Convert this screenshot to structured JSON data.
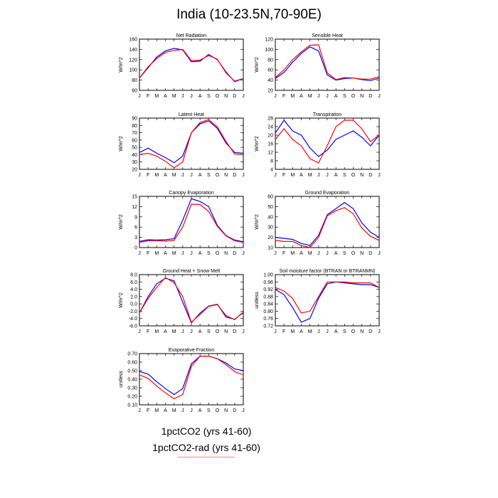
{
  "title": "India (10-23.5N,70-90E)",
  "colors": {
    "series_1": "#0000ff",
    "series_2": "#ff0000",
    "axis": "#000000"
  },
  "legend": {
    "line1": "1pctCO2 (yrs 41-60)",
    "line2": "1pctCO2-rad (yrs 41-60)"
  },
  "chart_data": [
    {
      "type": "line",
      "title": "Net Radiation",
      "ylabel": "W/m^2",
      "categories": [
        "J",
        "F",
        "M",
        "A",
        "M",
        "J",
        "J",
        "A",
        "S",
        "O",
        "N",
        "D",
        "J"
      ],
      "ylim": [
        60,
        160
      ],
      "yticks": [
        60,
        80,
        100,
        120,
        140,
        160
      ],
      "ytick_labels": [
        "60",
        "80",
        "100",
        "120",
        "140",
        "160"
      ],
      "series": [
        {
          "values": [
            84,
            104,
            125,
            137,
            142,
            139,
            116,
            117,
            130,
            120,
            96,
            77,
            83
          ]
        },
        {
          "values": [
            84,
            106,
            122,
            134,
            138,
            140,
            118,
            119,
            128,
            121,
            94,
            78,
            83
          ]
        }
      ]
    },
    {
      "type": "line",
      "title": "Sensible Heat",
      "ylabel": "W/m^2",
      "categories": [
        "J",
        "F",
        "M",
        "A",
        "M",
        "J",
        "J",
        "A",
        "S",
        "O",
        "N",
        "D",
        "J"
      ],
      "ylim": [
        20,
        120
      ],
      "yticks": [
        20,
        40,
        60,
        80,
        100,
        120
      ],
      "ytick_labels": [
        "20",
        "40",
        "60",
        "80",
        "100",
        "120"
      ],
      "series": [
        {
          "values": [
            43,
            55,
            75,
            92,
            105,
            97,
            50,
            40,
            43,
            44,
            41,
            39,
            44
          ]
        },
        {
          "values": [
            45,
            60,
            80,
            95,
            108,
            109,
            54,
            41,
            45,
            44,
            42,
            42,
            47
          ]
        }
      ]
    },
    {
      "type": "line",
      "title": "Latent Heat",
      "ylabel": "W/m^2",
      "categories": [
        "J",
        "F",
        "M",
        "A",
        "M",
        "J",
        "J",
        "A",
        "S",
        "O",
        "N",
        "D",
        "J"
      ],
      "ylim": [
        20,
        90
      ],
      "yticks": [
        20,
        30,
        40,
        50,
        60,
        70,
        80,
        90
      ],
      "ytick_labels": [
        "20",
        "30",
        "40",
        "50",
        "60",
        "70",
        "80",
        "90"
      ],
      "series": [
        {
          "values": [
            43,
            49,
            42,
            36,
            29,
            38,
            70,
            82,
            86,
            76,
            56,
            43,
            42
          ]
        },
        {
          "values": [
            40,
            42,
            38,
            31,
            22,
            30,
            70,
            84,
            88,
            78,
            58,
            41,
            40
          ]
        }
      ]
    },
    {
      "type": "line",
      "title": "Transpiration",
      "ylabel": "W/m^2",
      "categories": [
        "J",
        "F",
        "M",
        "A",
        "M",
        "J",
        "J",
        "A",
        "S",
        "O",
        "N",
        "D",
        "J"
      ],
      "ylim": [
        4,
        28
      ],
      "yticks": [
        4,
        8,
        12,
        16,
        20,
        24,
        28
      ],
      "ytick_labels": [
        "4",
        "8",
        "12",
        "16",
        "20",
        "24",
        "28"
      ],
      "series": [
        {
          "values": [
            21,
            27,
            22,
            20,
            14,
            10,
            13,
            18,
            20,
            22,
            19,
            15,
            20
          ]
        },
        {
          "values": [
            18,
            23,
            18,
            15,
            9,
            7,
            15,
            24,
            27,
            27,
            23,
            17,
            20
          ]
        }
      ]
    },
    {
      "type": "line",
      "title": "Canopy Evaporation",
      "ylabel": "W/m^2",
      "categories": [
        "J",
        "F",
        "M",
        "A",
        "M",
        "J",
        "J",
        "A",
        "S",
        "O",
        "N",
        "D",
        "J"
      ],
      "ylim": [
        0,
        15
      ],
      "yticks": [
        0,
        3,
        6,
        9,
        12,
        15
      ],
      "ytick_labels": [
        "0",
        "3",
        "6",
        "9",
        "12",
        "15"
      ],
      "series": [
        {
          "values": [
            1.8,
            2.3,
            2.2,
            2.3,
            2.6,
            8.0,
            14.3,
            13.5,
            12.0,
            6.5,
            3.5,
            2.2,
            1.7
          ]
        },
        {
          "values": [
            1.5,
            2.0,
            2.0,
            1.9,
            2.1,
            6.0,
            12.7,
            12.6,
            10.6,
            6.2,
            3.4,
            2.0,
            1.5
          ]
        }
      ]
    },
    {
      "type": "line",
      "title": "Ground Evaporation",
      "ylabel": "W/m^2",
      "categories": [
        "J",
        "F",
        "M",
        "A",
        "M",
        "J",
        "J",
        "A",
        "S",
        "O",
        "N",
        "D",
        "J"
      ],
      "ylim": [
        10,
        60
      ],
      "yticks": [
        10,
        20,
        30,
        40,
        50,
        60
      ],
      "ytick_labels": [
        "10",
        "20",
        "30",
        "40",
        "50",
        "60"
      ],
      "series": [
        {
          "values": [
            20,
            19,
            18,
            14,
            12,
            22,
            42,
            48,
            54,
            48,
            34,
            25,
            20
          ]
        },
        {
          "values": [
            17,
            16,
            16,
            12,
            10,
            20,
            41,
            46,
            49,
            43,
            29,
            21,
            17
          ]
        }
      ]
    },
    {
      "type": "line",
      "title": "Ground Heat + Snow Melt",
      "ylabel": "W/m^2",
      "categories": [
        "J",
        "F",
        "M",
        "A",
        "M",
        "J",
        "J",
        "A",
        "S",
        "O",
        "N",
        "D",
        "J"
      ],
      "ylim": [
        -6,
        8
      ],
      "yticks": [
        -6,
        -4,
        -2,
        0,
        2,
        4,
        6,
        8
      ],
      "ytick_labels": [
        "-6.0",
        "-4.0",
        "-2.0",
        "0.0",
        "2.0",
        "4.0",
        "6.0",
        "8.0"
      ],
      "series": [
        {
          "values": [
            -2.5,
            2.0,
            5.5,
            7.0,
            6.3,
            0.5,
            -5.2,
            -2.5,
            -0.6,
            -0.1,
            -3.6,
            -4.2,
            -2.4
          ]
        },
        {
          "values": [
            -2.5,
            1.5,
            4.5,
            7.2,
            5.8,
            2.0,
            -5.0,
            -2.9,
            -0.7,
            -0.2,
            -3.2,
            -4.3,
            -2.2
          ]
        }
      ]
    },
    {
      "type": "line",
      "title": "Soil moisture factor (BTRAN or BTRANMN)",
      "ylabel": "unitless",
      "categories": [
        "J",
        "F",
        "M",
        "A",
        "M",
        "J",
        "J",
        "A",
        "S",
        "O",
        "N",
        "D",
        "J"
      ],
      "ylim": [
        0.72,
        1.0
      ],
      "yticks": [
        0.72,
        0.76,
        0.8,
        0.84,
        0.88,
        0.92,
        0.96,
        1.0
      ],
      "ytick_labels": [
        "0.72",
        "0.76",
        "0.80",
        "0.84",
        "0.88",
        "0.92",
        "0.96",
        "1.00"
      ],
      "series": [
        {
          "values": [
            0.92,
            0.89,
            0.82,
            0.74,
            0.76,
            0.87,
            0.95,
            0.96,
            0.955,
            0.95,
            0.945,
            0.945,
            0.93
          ]
        },
        {
          "values": [
            0.93,
            0.91,
            0.87,
            0.79,
            0.8,
            0.88,
            0.96,
            0.96,
            0.96,
            0.955,
            0.955,
            0.955,
            0.93
          ]
        }
      ]
    },
    {
      "type": "line",
      "title": "Evaporative Fraction",
      "ylabel": "unitless",
      "categories": [
        "J",
        "F",
        "M",
        "A",
        "M",
        "J",
        "J",
        "A",
        "S",
        "O",
        "N",
        "D",
        "J"
      ],
      "ylim": [
        0.1,
        0.7
      ],
      "yticks": [
        0.1,
        0.2,
        0.3,
        0.4,
        0.5,
        0.6,
        0.7
      ],
      "ytick_labels": [
        "0.10",
        "0.20",
        "0.30",
        "0.40",
        "0.50",
        "0.60",
        "0.70"
      ],
      "series": [
        {
          "values": [
            0.49,
            0.46,
            0.37,
            0.29,
            0.22,
            0.29,
            0.58,
            0.67,
            0.67,
            0.64,
            0.59,
            0.52,
            0.5
          ]
        },
        {
          "values": [
            0.45,
            0.41,
            0.32,
            0.24,
            0.17,
            0.22,
            0.55,
            0.67,
            0.67,
            0.64,
            0.57,
            0.49,
            0.45
          ]
        }
      ]
    }
  ]
}
